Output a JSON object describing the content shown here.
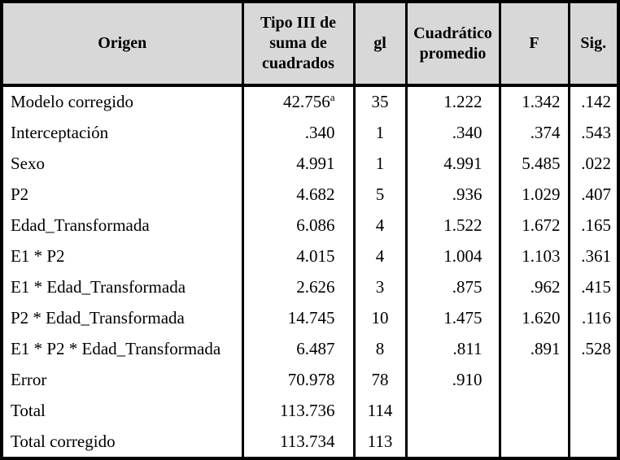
{
  "colors": {
    "header_background": "#d8d8d8",
    "border": "#000000",
    "text": "#000000",
    "body_background": "#ffffff"
  },
  "table": {
    "columns": [
      {
        "key": "origen",
        "label": "Origen"
      },
      {
        "key": "sum_sq",
        "label": "Tipo III de suma de cuadrados"
      },
      {
        "key": "gl",
        "label": "gl"
      },
      {
        "key": "mean_sq",
        "label": "Cuadrático promedio"
      },
      {
        "key": "f",
        "label": "F"
      },
      {
        "key": "sig",
        "label": "Sig."
      }
    ],
    "rows": [
      {
        "origen": "Modelo corregido",
        "sum_sq": "42.756",
        "sum_sq_sup": "a",
        "gl": "35",
        "mean_sq": "1.222",
        "f": "1.342",
        "sig": ".142"
      },
      {
        "origen": "Interceptación",
        "sum_sq": ".340",
        "gl": "1",
        "mean_sq": ".340",
        "f": ".374",
        "sig": ".543"
      },
      {
        "origen": "Sexo",
        "sum_sq": "4.991",
        "gl": "1",
        "mean_sq": "4.991",
        "f": "5.485",
        "sig": ".022"
      },
      {
        "origen": "P2",
        "sum_sq": "4.682",
        "gl": "5",
        "mean_sq": ".936",
        "f": "1.029",
        "sig": ".407"
      },
      {
        "origen": "Edad_Transformada",
        "sum_sq": "6.086",
        "gl": "4",
        "mean_sq": "1.522",
        "f": "1.672",
        "sig": ".165"
      },
      {
        "origen": "E1 * P2",
        "sum_sq": "4.015",
        "gl": "4",
        "mean_sq": "1.004",
        "f": "1.103",
        "sig": ".361"
      },
      {
        "origen": "E1 * Edad_Transformada",
        "sum_sq": "2.626",
        "gl": "3",
        "mean_sq": ".875",
        "f": ".962",
        "sig": ".415"
      },
      {
        "origen": "P2 * Edad_Transformada",
        "sum_sq": "14.745",
        "gl": "10",
        "mean_sq": "1.475",
        "f": "1.620",
        "sig": ".116"
      },
      {
        "origen": "E1 * P2 * Edad_Transformada",
        "sum_sq": "6.487",
        "gl": "8",
        "mean_sq": ".811",
        "f": ".891",
        "sig": ".528"
      },
      {
        "origen": "Error",
        "sum_sq": "70.978",
        "gl": "78",
        "mean_sq": ".910",
        "f": "",
        "sig": ""
      },
      {
        "origen": "Total",
        "sum_sq": "113.736",
        "gl": "114",
        "mean_sq": "",
        "f": "",
        "sig": ""
      },
      {
        "origen": "Total corregido",
        "sum_sq": "113.734",
        "gl": "113",
        "mean_sq": "",
        "f": "",
        "sig": ""
      }
    ]
  }
}
